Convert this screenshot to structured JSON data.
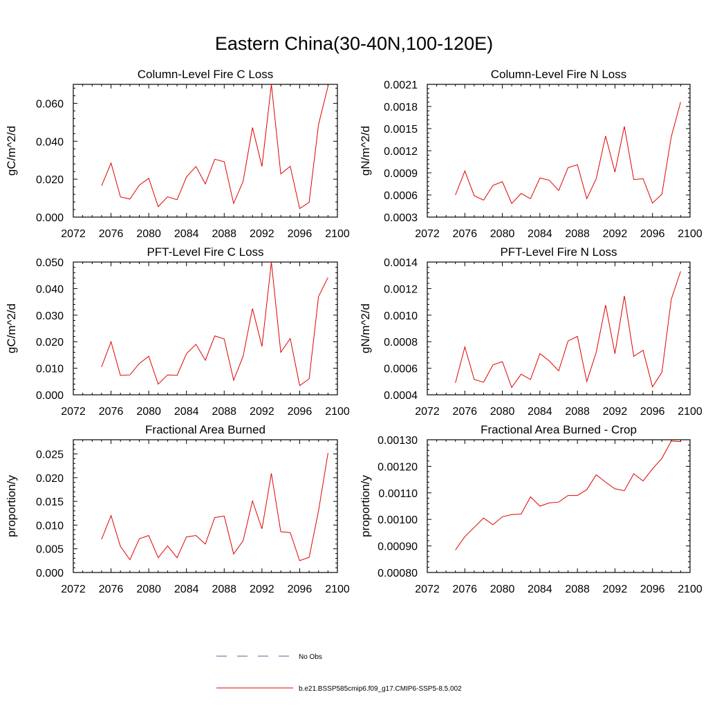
{
  "figure": {
    "title": "Eastern China(30-40N,100-120E)"
  },
  "legend": {
    "placement": "bottom-center",
    "entries": [
      {
        "label": "No Obs",
        "color": "#5a5aa0",
        "style": "dashed"
      },
      {
        "label": "b.e21.BSSP585cmip6.f09_g17.CMIP6-SSP5-8.5.002",
        "color": "#e00000",
        "style": "solid"
      }
    ]
  },
  "chart_data": [
    {
      "type": "line",
      "title": "Column-Level Fire C Loss",
      "xlabel": "",
      "ylabel": "gC/m^2/d",
      "xlim": [
        2072,
        2100
      ],
      "ylim": [
        0,
        0.07
      ],
      "xticks": [
        2072,
        2076,
        2080,
        2084,
        2088,
        2092,
        2096,
        2100
      ],
      "yticks": [
        0.0,
        0.02,
        0.04,
        0.06
      ],
      "ytick_labels": [
        "0.000",
        "0.020",
        "0.040",
        "0.060"
      ],
      "grid": false,
      "x": [
        2075,
        2076,
        2077,
        2078,
        2079,
        2080,
        2081,
        2082,
        2083,
        2084,
        2085,
        2086,
        2087,
        2088,
        2089,
        2090,
        2091,
        2092,
        2093,
        2094,
        2095,
        2096,
        2097,
        2098,
        2099
      ],
      "series": [
        {
          "name": "b.e21.BSSP585cmip6.f09_g17.CMIP6-SSP5-8.5.002",
          "color": "#e00000",
          "values": [
            0.0165,
            0.0285,
            0.0107,
            0.0095,
            0.0168,
            0.0205,
            0.0055,
            0.0107,
            0.0092,
            0.0212,
            0.0267,
            0.0175,
            0.0305,
            0.0292,
            0.0072,
            0.0188,
            0.0472,
            0.0267,
            0.07,
            0.0228,
            0.0268,
            0.0045,
            0.0078,
            0.0488,
            0.069
          ]
        }
      ]
    },
    {
      "type": "line",
      "title": "Column-Level Fire N Loss",
      "xlabel": "",
      "ylabel": "gN/m^2/d",
      "xlim": [
        2072,
        2100
      ],
      "ylim": [
        0.0003,
        0.0021
      ],
      "xticks": [
        2072,
        2076,
        2080,
        2084,
        2088,
        2092,
        2096,
        2100
      ],
      "yticks": [
        0.0003,
        0.0006,
        0.0009,
        0.0012,
        0.0015,
        0.0018,
        0.0021
      ],
      "ytick_labels": [
        "0.0003",
        "0.0006",
        "0.0009",
        "0.0012",
        "0.0015",
        "0.0018",
        "0.0021"
      ],
      "grid": false,
      "x": [
        2075,
        2076,
        2077,
        2078,
        2079,
        2080,
        2081,
        2082,
        2083,
        2084,
        2085,
        2086,
        2087,
        2088,
        2089,
        2090,
        2091,
        2092,
        2093,
        2094,
        2095,
        2096,
        2097,
        2098,
        2099
      ],
      "series": [
        {
          "name": "b.e21.BSSP585cmip6.f09_g17.CMIP6-SSP5-8.5.002",
          "color": "#e00000",
          "values": [
            0.0006,
            0.000925,
            0.00059,
            0.00053,
            0.00073,
            0.00078,
            0.000485,
            0.00062,
            0.00055,
            0.00083,
            0.0008,
            0.00066,
            0.00097,
            0.00101,
            0.00055,
            0.00082,
            0.0014,
            0.00091,
            0.00153,
            0.00081,
            0.00082,
            0.00049,
            0.00061,
            0.00139,
            0.00186
          ]
        }
      ]
    },
    {
      "type": "line",
      "title": "PFT-Level Fire C Loss",
      "xlabel": "",
      "ylabel": "gC/m^2/d",
      "xlim": [
        2072,
        2100
      ],
      "ylim": [
        0,
        0.05
      ],
      "xticks": [
        2072,
        2076,
        2080,
        2084,
        2088,
        2092,
        2096,
        2100
      ],
      "yticks": [
        0.0,
        0.01,
        0.02,
        0.03,
        0.04,
        0.05
      ],
      "ytick_labels": [
        "0.000",
        "0.010",
        "0.020",
        "0.030",
        "0.040",
        "0.050"
      ],
      "grid": false,
      "x": [
        2075,
        2076,
        2077,
        2078,
        2079,
        2080,
        2081,
        2082,
        2083,
        2084,
        2085,
        2086,
        2087,
        2088,
        2089,
        2090,
        2091,
        2092,
        2093,
        2094,
        2095,
        2096,
        2097,
        2098,
        2099
      ],
      "series": [
        {
          "name": "b.e21.BSSP585cmip6.f09_g17.CMIP6-SSP5-8.5.002",
          "color": "#e00000",
          "values": [
            0.0105,
            0.02,
            0.0073,
            0.0075,
            0.0118,
            0.0145,
            0.004,
            0.0075,
            0.0073,
            0.0155,
            0.019,
            0.013,
            0.0222,
            0.021,
            0.0055,
            0.0145,
            0.0325,
            0.0182,
            0.05,
            0.016,
            0.0212,
            0.0035,
            0.006,
            0.037,
            0.0442
          ]
        }
      ]
    },
    {
      "type": "line",
      "title": "PFT-Level Fire N Loss",
      "xlabel": "",
      "ylabel": "gN/m^2/d",
      "xlim": [
        2072,
        2100
      ],
      "ylim": [
        0.0004,
        0.0014
      ],
      "xticks": [
        2072,
        2076,
        2080,
        2084,
        2088,
        2092,
        2096,
        2100
      ],
      "yticks": [
        0.0004,
        0.0006,
        0.0008,
        0.001,
        0.0012,
        0.0014
      ],
      "ytick_labels": [
        "0.0004",
        "0.0006",
        "0.0008",
        "0.0010",
        "0.0012",
        "0.0014"
      ],
      "grid": false,
      "x": [
        2075,
        2076,
        2077,
        2078,
        2079,
        2080,
        2081,
        2082,
        2083,
        2084,
        2085,
        2086,
        2087,
        2088,
        2089,
        2090,
        2091,
        2092,
        2093,
        2094,
        2095,
        2096,
        2097,
        2098,
        2099
      ],
      "series": [
        {
          "name": "b.e21.BSSP585cmip6.f09_g17.CMIP6-SSP5-8.5.002",
          "color": "#e00000",
          "values": [
            0.00049,
            0.00076,
            0.000515,
            0.000495,
            0.000625,
            0.00065,
            0.000455,
            0.000555,
            0.000515,
            0.00071,
            0.000655,
            0.00058,
            0.000805,
            0.00084,
            0.0005,
            0.00072,
            0.001075,
            0.00071,
            0.001145,
            0.00069,
            0.000735,
            0.00046,
            0.00057,
            0.00112,
            0.00133
          ]
        }
      ]
    },
    {
      "type": "line",
      "title": "Fractional Area Burned",
      "xlabel": "",
      "ylabel": "proportion/y",
      "xlim": [
        2072,
        2100
      ],
      "ylim": [
        0,
        0.028
      ],
      "xticks": [
        2072,
        2076,
        2080,
        2084,
        2088,
        2092,
        2096,
        2100
      ],
      "yticks": [
        0.0,
        0.005,
        0.01,
        0.015,
        0.02,
        0.025
      ],
      "ytick_labels": [
        "0.000",
        "0.005",
        "0.010",
        "0.015",
        "0.020",
        "0.025"
      ],
      "grid": false,
      "x": [
        2075,
        2076,
        2077,
        2078,
        2079,
        2080,
        2081,
        2082,
        2083,
        2084,
        2085,
        2086,
        2087,
        2088,
        2089,
        2090,
        2091,
        2092,
        2093,
        2094,
        2095,
        2096,
        2097,
        2098,
        2099
      ],
      "series": [
        {
          "name": "b.e21.BSSP585cmip6.f09_g17.CMIP6-SSP5-8.5.002",
          "color": "#e00000",
          "values": [
            0.007,
            0.012,
            0.0055,
            0.0027,
            0.0071,
            0.0078,
            0.0031,
            0.0056,
            0.0031,
            0.0075,
            0.0078,
            0.006,
            0.0116,
            0.0119,
            0.0039,
            0.0067,
            0.0151,
            0.0092,
            0.0209,
            0.0086,
            0.0084,
            0.0025,
            0.0032,
            0.013,
            0.0252
          ]
        }
      ]
    },
    {
      "type": "line",
      "title": "Fractional Area Burned - Crop",
      "xlabel": "",
      "ylabel": "proportion/y",
      "xlim": [
        2072,
        2100
      ],
      "ylim": [
        0.0008,
        0.0013
      ],
      "xticks": [
        2072,
        2076,
        2080,
        2084,
        2088,
        2092,
        2096,
        2100
      ],
      "yticks": [
        0.0008,
        0.0009,
        0.001,
        0.0011,
        0.0012,
        0.0013
      ],
      "ytick_labels": [
        "0.00080",
        "0.00090",
        "0.00100",
        "0.00110",
        "0.00120",
        "0.00130"
      ],
      "grid": false,
      "x": [
        2075,
        2076,
        2077,
        2078,
        2079,
        2080,
        2081,
        2082,
        2083,
        2084,
        2085,
        2086,
        2087,
        2088,
        2089,
        2090,
        2091,
        2092,
        2093,
        2094,
        2095,
        2096,
        2097,
        2098,
        2099
      ],
      "series": [
        {
          "name": "b.e21.BSSP585cmip6.f09_g17.CMIP6-SSP5-8.5.002",
          "color": "#e00000",
          "values": [
            0.000885,
            0.000935,
            0.00097,
            0.001005,
            0.00098,
            0.00101,
            0.001018,
            0.00102,
            0.001085,
            0.00105,
            0.001062,
            0.001065,
            0.00109,
            0.00109,
            0.001112,
            0.001168,
            0.00114,
            0.001115,
            0.001108,
            0.001172,
            0.001145,
            0.00119,
            0.00123,
            0.001295,
            0.001293
          ]
        }
      ]
    }
  ]
}
